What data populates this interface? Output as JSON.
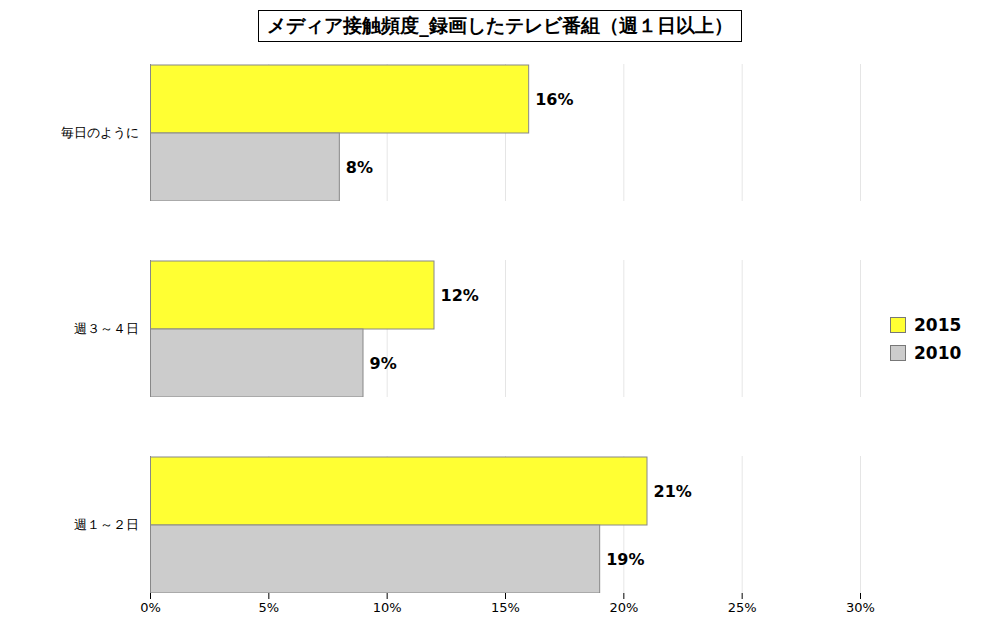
{
  "chart_data": {
    "type": "bar",
    "title": "メディア接触頻度_録画したテレビ番組（週１日以上）",
    "orientation": "horizontal",
    "categories": [
      "毎日のように",
      "週３～４日",
      "週１～２日"
    ],
    "series": [
      {
        "name": "2015",
        "color": "#ffff33",
        "values": [
          16,
          12,
          21
        ],
        "value_labels": [
          "16%",
          "12%",
          "21%"
        ]
      },
      {
        "name": "2010",
        "color": "#cccccc",
        "values": [
          8,
          9,
          19
        ],
        "value_labels": [
          "8%",
          "9%",
          "19%"
        ]
      }
    ],
    "xlim": [
      0,
      30
    ],
    "xticks": [
      {
        "value": 0,
        "label": "0%"
      },
      {
        "value": 5,
        "label": "5%"
      },
      {
        "value": 10,
        "label": "10%"
      },
      {
        "value": 15,
        "label": "15%"
      },
      {
        "value": 20,
        "label": "20%"
      },
      {
        "value": 25,
        "label": "25%"
      },
      {
        "value": 30,
        "label": "30%"
      }
    ],
    "grid": true,
    "legend": "right",
    "data_labels": true
  }
}
